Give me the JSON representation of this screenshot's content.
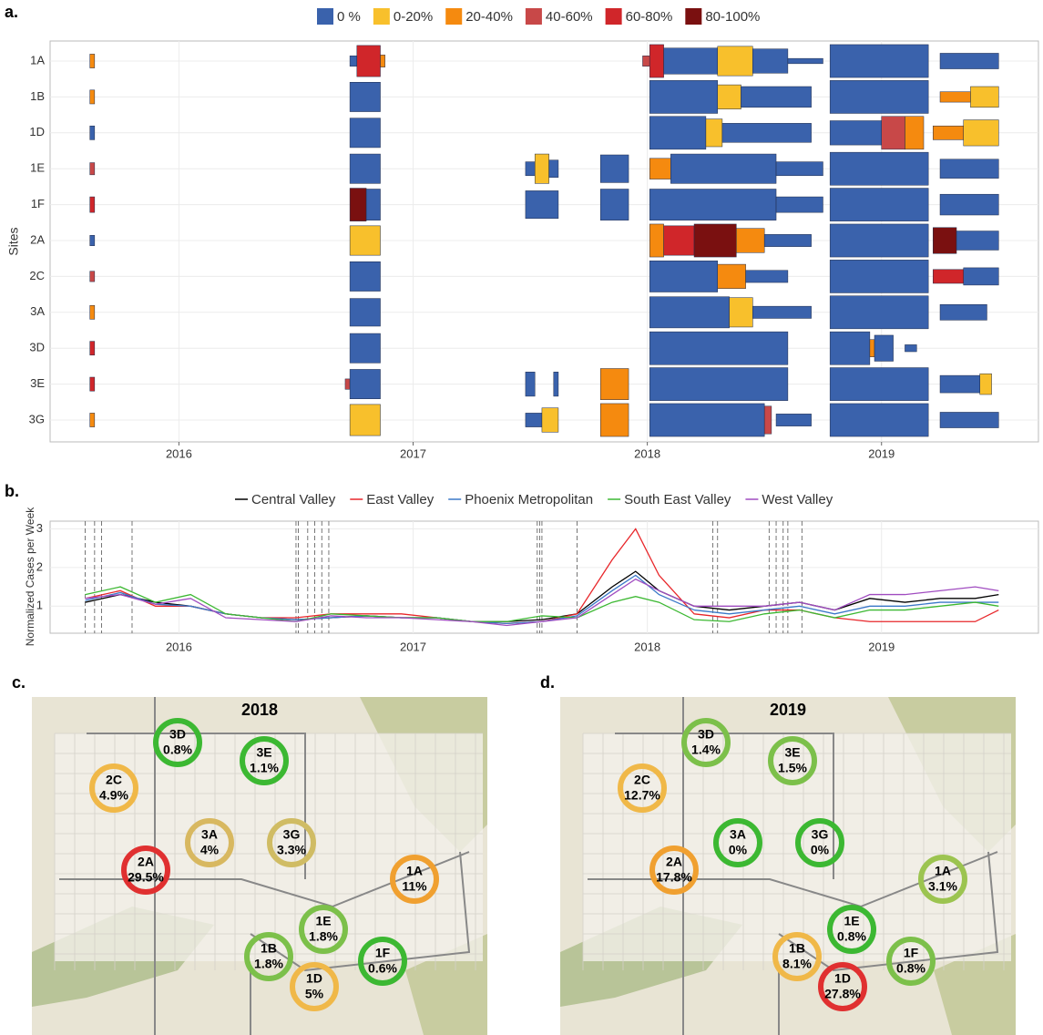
{
  "chart_data": [
    {
      "type": "timeline",
      "label": "a.",
      "ylabel": "Sites",
      "legend": [
        {
          "name": "0 %",
          "color": "#3a62ac"
        },
        {
          "name": "0-20%",
          "color": "#f8c02c"
        },
        {
          "name": "20-40%",
          "color": "#f58a0f"
        },
        {
          "name": "40-60%",
          "color": "#c84848"
        },
        {
          "name": "60-80%",
          "color": "#d0262a"
        },
        {
          "name": "80-100%",
          "color": "#7a1010"
        }
      ],
      "xlim": [
        2015.45,
        2019.67
      ],
      "xticks": [
        2016,
        2017,
        2018,
        2019
      ],
      "grid": true,
      "rows": [
        {
          "name": "1A",
          "spans": [
            [
              2015.62,
              2015.64,
              2,
              0.4
            ],
            [
              2016.73,
              2016.76,
              0,
              0.3
            ],
            [
              2016.76,
              2016.86,
              4,
              0.9
            ],
            [
              2016.86,
              2016.88,
              2,
              0.35
            ],
            [
              2017.98,
              2018.01,
              3,
              0.3
            ],
            [
              2018.01,
              2018.07,
              4,
              0.95
            ],
            [
              2018.07,
              2018.3,
              0,
              0.75
            ],
            [
              2018.3,
              2018.45,
              1,
              0.85
            ],
            [
              2018.45,
              2018.6,
              0,
              0.7
            ],
            [
              2018.6,
              2018.75,
              0,
              0.15
            ],
            [
              2018.78,
              2019.2,
              0,
              0.95
            ],
            [
              2019.25,
              2019.5,
              0,
              0.45
            ]
          ]
        },
        {
          "name": "1B",
          "spans": [
            [
              2015.62,
              2015.64,
              2,
              0.4
            ],
            [
              2016.73,
              2016.86,
              0,
              0.85
            ],
            [
              2018.01,
              2018.3,
              0,
              0.95
            ],
            [
              2018.3,
              2018.4,
              1,
              0.7
            ],
            [
              2018.4,
              2018.7,
              0,
              0.6
            ],
            [
              2018.78,
              2019.2,
              0,
              0.95
            ],
            [
              2019.25,
              2019.38,
              2,
              0.3
            ],
            [
              2019.38,
              2019.5,
              1,
              0.6
            ]
          ]
        },
        {
          "name": "1D",
          "spans": [
            [
              2015.62,
              2015.64,
              0,
              0.4
            ],
            [
              2016.73,
              2016.86,
              0,
              0.85
            ],
            [
              2018.01,
              2018.25,
              0,
              0.95
            ],
            [
              2018.25,
              2018.32,
              1,
              0.8
            ],
            [
              2018.32,
              2018.7,
              0,
              0.55
            ],
            [
              2018.78,
              2019.0,
              0,
              0.7
            ],
            [
              2019.0,
              2019.1,
              3,
              0.95
            ],
            [
              2019.1,
              2019.18,
              2,
              0.95
            ],
            [
              2019.22,
              2019.35,
              2,
              0.4
            ],
            [
              2019.35,
              2019.5,
              1,
              0.75
            ]
          ]
        },
        {
          "name": "1E",
          "spans": [
            [
              2015.62,
              2015.64,
              3,
              0.35
            ],
            [
              2016.73,
              2016.86,
              0,
              0.85
            ],
            [
              2017.48,
              2017.52,
              0,
              0.4
            ],
            [
              2017.52,
              2017.58,
              1,
              0.85
            ],
            [
              2017.58,
              2017.62,
              0,
              0.5
            ],
            [
              2017.8,
              2017.92,
              0,
              0.8
            ],
            [
              2018.01,
              2018.1,
              2,
              0.6
            ],
            [
              2018.1,
              2018.55,
              0,
              0.85
            ],
            [
              2018.55,
              2018.75,
              0,
              0.4
            ],
            [
              2018.78,
              2019.2,
              0,
              0.95
            ],
            [
              2019.25,
              2019.5,
              0,
              0.55
            ]
          ]
        },
        {
          "name": "1F",
          "spans": [
            [
              2015.62,
              2015.64,
              4,
              0.45
            ],
            [
              2016.73,
              2016.8,
              5,
              0.95
            ],
            [
              2016.8,
              2016.86,
              0,
              0.9
            ],
            [
              2017.48,
              2017.62,
              0,
              0.8
            ],
            [
              2017.8,
              2017.92,
              0,
              0.9
            ],
            [
              2018.01,
              2018.55,
              0,
              0.9
            ],
            [
              2018.55,
              2018.75,
              0,
              0.45
            ],
            [
              2018.78,
              2019.2,
              0,
              0.95
            ],
            [
              2019.25,
              2019.5,
              0,
              0.6
            ]
          ]
        },
        {
          "name": "2A",
          "spans": [
            [
              2015.62,
              2015.64,
              0,
              0.3
            ],
            [
              2016.73,
              2016.86,
              1,
              0.85
            ],
            [
              2018.01,
              2018.07,
              2,
              0.95
            ],
            [
              2018.07,
              2018.2,
              4,
              0.85
            ],
            [
              2018.2,
              2018.38,
              5,
              0.95
            ],
            [
              2018.38,
              2018.5,
              2,
              0.7
            ],
            [
              2018.5,
              2018.7,
              0,
              0.35
            ],
            [
              2018.78,
              2019.2,
              0,
              0.95
            ],
            [
              2019.22,
              2019.32,
              5,
              0.75
            ],
            [
              2019.32,
              2019.5,
              0,
              0.55
            ]
          ]
        },
        {
          "name": "2C",
          "spans": [
            [
              2015.62,
              2015.64,
              3,
              0.3
            ],
            [
              2016.73,
              2016.86,
              0,
              0.85
            ],
            [
              2018.01,
              2018.3,
              0,
              0.9
            ],
            [
              2018.3,
              2018.42,
              2,
              0.7
            ],
            [
              2018.42,
              2018.6,
              0,
              0.35
            ],
            [
              2018.78,
              2019.2,
              0,
              0.95
            ],
            [
              2019.22,
              2019.35,
              4,
              0.4
            ],
            [
              2019.35,
              2019.5,
              0,
              0.5
            ]
          ]
        },
        {
          "name": "3A",
          "spans": [
            [
              2015.62,
              2015.64,
              2,
              0.4
            ],
            [
              2016.73,
              2016.86,
              0,
              0.8
            ],
            [
              2018.01,
              2018.35,
              0,
              0.9
            ],
            [
              2018.35,
              2018.45,
              1,
              0.85
            ],
            [
              2018.45,
              2018.7,
              0,
              0.35
            ],
            [
              2018.78,
              2019.2,
              0,
              0.95
            ],
            [
              2019.25,
              2019.45,
              0,
              0.45
            ]
          ]
        },
        {
          "name": "3D",
          "spans": [
            [
              2015.62,
              2015.64,
              4,
              0.4
            ],
            [
              2016.73,
              2016.86,
              0,
              0.85
            ],
            [
              2018.01,
              2018.6,
              0,
              0.95
            ],
            [
              2018.78,
              2018.95,
              0,
              0.95
            ],
            [
              2018.95,
              2018.97,
              2,
              0.5
            ],
            [
              2018.97,
              2019.05,
              0,
              0.75
            ],
            [
              2019.1,
              2019.15,
              0,
              0.2
            ]
          ]
        },
        {
          "name": "3E",
          "spans": [
            [
              2015.62,
              2015.64,
              4,
              0.4
            ],
            [
              2016.71,
              2016.73,
              3,
              0.3
            ],
            [
              2016.73,
              2016.86,
              0,
              0.85
            ],
            [
              2017.48,
              2017.52,
              0,
              0.7
            ],
            [
              2017.6,
              2017.62,
              0,
              0.7
            ],
            [
              2017.8,
              2017.92,
              2,
              0.9
            ],
            [
              2018.01,
              2018.6,
              0,
              0.95
            ],
            [
              2018.78,
              2019.2,
              0,
              0.95
            ],
            [
              2019.25,
              2019.42,
              0,
              0.5
            ],
            [
              2019.42,
              2019.47,
              1,
              0.6
            ]
          ]
        },
        {
          "name": "3G",
          "spans": [
            [
              2015.62,
              2015.64,
              2,
              0.4
            ],
            [
              2016.73,
              2016.86,
              1,
              0.9
            ],
            [
              2017.48,
              2017.55,
              0,
              0.4
            ],
            [
              2017.55,
              2017.62,
              1,
              0.7
            ],
            [
              2017.8,
              2017.92,
              2,
              0.95
            ],
            [
              2018.01,
              2018.5,
              0,
              0.95
            ],
            [
              2018.5,
              2018.53,
              3,
              0.8
            ],
            [
              2018.55,
              2018.7,
              0,
              0.35
            ],
            [
              2018.78,
              2019.2,
              0,
              0.95
            ],
            [
              2019.25,
              2019.5,
              0,
              0.45
            ]
          ]
        }
      ]
    },
    {
      "type": "line",
      "label": "b.",
      "ylabel": "Normalized Cases per Week",
      "xlim": [
        2015.45,
        2019.67
      ],
      "xticks": [
        2016,
        2017,
        2018,
        2019
      ],
      "ylim": [
        0.3,
        3.2
      ],
      "yticks": [
        1,
        2,
        3
      ],
      "grid": true,
      "x": [
        2015.6,
        2015.75,
        2015.9,
        2016.05,
        2016.2,
        2016.35,
        2016.5,
        2016.65,
        2016.8,
        2016.95,
        2017.1,
        2017.25,
        2017.4,
        2017.55,
        2017.7,
        2017.85,
        2017.95,
        2018.05,
        2018.2,
        2018.35,
        2018.5,
        2018.65,
        2018.8,
        2018.95,
        2019.1,
        2019.25,
        2019.4,
        2019.5
      ],
      "series": [
        {
          "name": "Central Valley",
          "color": "#000000",
          "values": [
            1.1,
            1.3,
            1.1,
            1.0,
            0.8,
            0.7,
            0.65,
            0.7,
            0.75,
            0.7,
            0.7,
            0.6,
            0.6,
            0.65,
            0.8,
            1.5,
            1.9,
            1.4,
            1.0,
            0.9,
            1.0,
            1.1,
            0.9,
            1.2,
            1.1,
            1.2,
            1.2,
            1.3
          ]
        },
        {
          "name": "East Valley",
          "color": "#e8262a",
          "values": [
            1.2,
            1.4,
            1.0,
            1.0,
            0.8,
            0.7,
            0.7,
            0.8,
            0.8,
            0.8,
            0.7,
            0.6,
            0.55,
            0.6,
            0.8,
            2.2,
            3.0,
            1.8,
            0.8,
            0.7,
            0.9,
            0.9,
            0.7,
            0.6,
            0.6,
            0.6,
            0.6,
            0.9
          ]
        },
        {
          "name": "Phoenix Metropolitan",
          "color": "#3a78c8",
          "values": [
            1.15,
            1.35,
            1.05,
            1.0,
            0.8,
            0.7,
            0.65,
            0.7,
            0.75,
            0.7,
            0.7,
            0.6,
            0.55,
            0.6,
            0.75,
            1.4,
            1.8,
            1.3,
            0.9,
            0.8,
            0.9,
            1.0,
            0.8,
            1.0,
            1.0,
            1.1,
            1.1,
            1.1
          ]
        },
        {
          "name": "South East Valley",
          "color": "#3cb832",
          "values": [
            1.3,
            1.5,
            1.1,
            1.3,
            0.8,
            0.7,
            0.6,
            0.8,
            0.75,
            0.7,
            0.7,
            0.6,
            0.6,
            0.75,
            0.7,
            1.1,
            1.25,
            1.1,
            0.65,
            0.6,
            0.8,
            0.9,
            0.7,
            0.9,
            0.9,
            1.0,
            1.1,
            1.0
          ]
        },
        {
          "name": "West Valley",
          "color": "#a04cc0",
          "values": [
            1.2,
            1.3,
            1.05,
            1.2,
            0.7,
            0.65,
            0.6,
            0.75,
            0.7,
            0.7,
            0.65,
            0.6,
            0.5,
            0.6,
            0.7,
            1.3,
            1.7,
            1.4,
            1.0,
            1.0,
            1.0,
            1.1,
            0.9,
            1.3,
            1.3,
            1.4,
            1.5,
            1.4
          ]
        }
      ],
      "vlines": [
        2015.6,
        2015.64,
        2015.67,
        2015.8,
        2016.5,
        2016.51,
        2016.55,
        2016.58,
        2016.61,
        2016.64,
        2017.53,
        2017.54,
        2017.55,
        2017.7,
        2018.28,
        2018.3,
        2018.52,
        2018.55,
        2018.58,
        2018.6,
        2018.66
      ]
    },
    {
      "type": "map",
      "label": "c.",
      "title": "2018",
      "sites": [
        "3D",
        "3E",
        "2C",
        "3A",
        "3G",
        "2A",
        "1A",
        "1E",
        "1B",
        "1F",
        "1D"
      ],
      "values": [
        0.8,
        1.1,
        4.9,
        4,
        3.3,
        29.5,
        11,
        1.8,
        1.8,
        0.6,
        5
      ],
      "value_labels": [
        "0.8%",
        "1.1%",
        "4.9%",
        "4%",
        "3.3%",
        "29.5%",
        "11%",
        "1.8%",
        "1.8%",
        "0.6%",
        "5%"
      ],
      "colors": [
        "#3cb832",
        "#3cb832",
        "#f0b848",
        "#d8b860",
        "#d0bc64",
        "#e03030",
        "#f0a030",
        "#7cc04a",
        "#7cc04a",
        "#3cb832",
        "#f0b848"
      ]
    },
    {
      "type": "map",
      "label": "d.",
      "title": "2019",
      "sites": [
        "3D",
        "3E",
        "2C",
        "3A",
        "3G",
        "2A",
        "1A",
        "1E",
        "1B",
        "1F",
        "1D"
      ],
      "values": [
        1.4,
        1.5,
        12.7,
        0,
        0,
        17.8,
        3.1,
        0.8,
        8.1,
        0.8,
        27.8
      ],
      "value_labels": [
        "1.4%",
        "1.5%",
        "12.7%",
        "0%",
        "0%",
        "17.8%",
        "3.1%",
        "0.8%",
        "8.1%",
        "0.8%",
        "27.8%"
      ],
      "colors": [
        "#7cc04a",
        "#7cc04a",
        "#f0b848",
        "#3cb832",
        "#3cb832",
        "#f0a030",
        "#9cc450",
        "#3cb832",
        "#f0b848",
        "#7cc04a",
        "#e03030"
      ]
    }
  ]
}
